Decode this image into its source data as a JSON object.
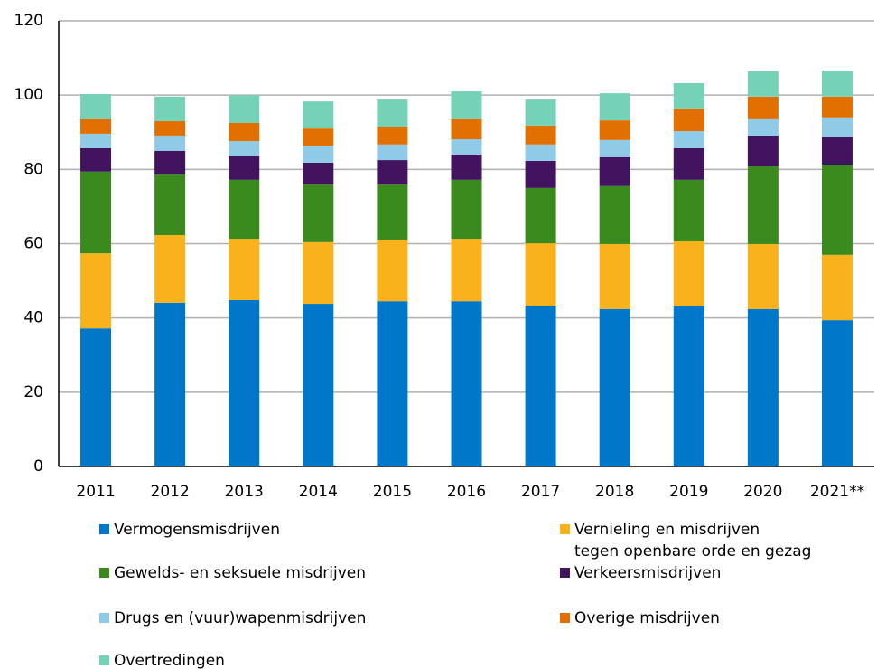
{
  "chart_data": {
    "type": "stacked_bar",
    "categories": [
      "2011",
      "2012",
      "2013",
      "2014",
      "2015",
      "2016",
      "2017",
      "2018",
      "2019",
      "2020",
      "2021**"
    ],
    "series": [
      {
        "name": "Vermogensmisdrijven",
        "color": "#0077c8",
        "values": [
          37.2,
          44.1,
          44.8,
          43.8,
          44.5,
          44.5,
          43.3,
          42.4,
          43.1,
          42.4,
          39.4
        ]
      },
      {
        "name": "Vernieling en misdrijven\ntegen openbare orde en gezag",
        "color": "#f9b21b",
        "values": [
          20.2,
          18.2,
          16.5,
          16.6,
          16.6,
          16.8,
          16.8,
          17.5,
          17.5,
          17.5,
          17.6
        ]
      },
      {
        "name": "Gewelds- en seksuele misdrijven",
        "color": "#3a8a1e",
        "values": [
          22.0,
          16.3,
          15.9,
          15.5,
          14.8,
          15.9,
          14.9,
          15.6,
          16.6,
          20.9,
          24.3
        ]
      },
      {
        "name": "Verkeersmisdrijven",
        "color": "#42145f",
        "values": [
          6.3,
          6.4,
          6.3,
          5.9,
          6.6,
          6.8,
          7.3,
          7.8,
          8.5,
          8.3,
          7.3
        ]
      },
      {
        "name": "Drugs en (vuur)wapenmisdrijven",
        "color": "#8fcae7",
        "values": [
          3.9,
          4.1,
          4.1,
          4.6,
          4.2,
          4.1,
          4.4,
          4.6,
          4.6,
          4.4,
          5.4
        ]
      },
      {
        "name": "Overige misdrijven",
        "color": "#e17000",
        "values": [
          3.9,
          3.9,
          4.9,
          4.6,
          4.8,
          5.4,
          5.1,
          5.3,
          5.9,
          6.1,
          5.6
        ]
      },
      {
        "name": "Overtredingen",
        "color": "#76d2b6",
        "values": [
          6.8,
          6.6,
          7.5,
          7.3,
          7.3,
          7.5,
          7.0,
          7.3,
          7.0,
          6.8,
          7.0
        ]
      }
    ],
    "ylim": [
      0,
      120
    ],
    "yticks": [
      0,
      20,
      40,
      60,
      80,
      100,
      120
    ],
    "grid": true
  }
}
